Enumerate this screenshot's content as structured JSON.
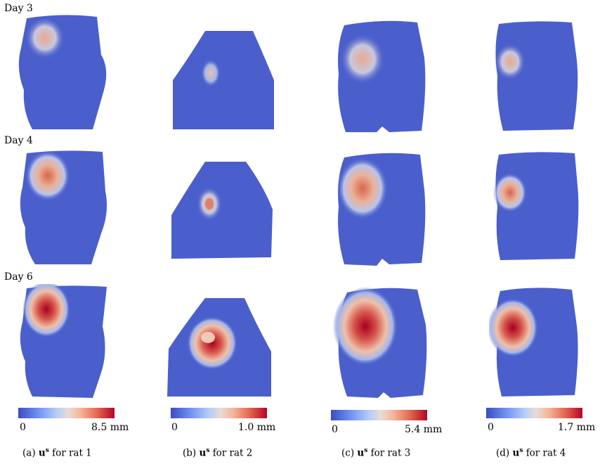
{
  "day_labels": [
    "Day 3",
    "Day 4",
    "Day 6"
  ],
  "colorbars": [
    {
      "min": "0",
      "max": "8.5 mm"
    },
    {
      "min": "0",
      "max": "1.0 mm"
    },
    {
      "min": "0",
      "max": "5.4 mm"
    },
    {
      "min": "0",
      "max": "1.7 mm"
    }
  ],
  "captions": [
    {
      "prefix": "(a)",
      "symbol": "u",
      "sup": "s",
      "suffix": "for rat 1"
    },
    {
      "prefix": "(b)",
      "symbol": "u",
      "sup": "s",
      "suffix": "for rat 2"
    },
    {
      "prefix": "(c)",
      "symbol": "u",
      "sup": "s",
      "suffix": "for rat 3"
    },
    {
      "prefix": "(d)",
      "symbol": "u",
      "sup": "s",
      "suffix": "for rat 4"
    }
  ],
  "colormap": {
    "low": "#3b4cc0",
    "mid": "#dddddd",
    "high": "#b40426"
  }
}
